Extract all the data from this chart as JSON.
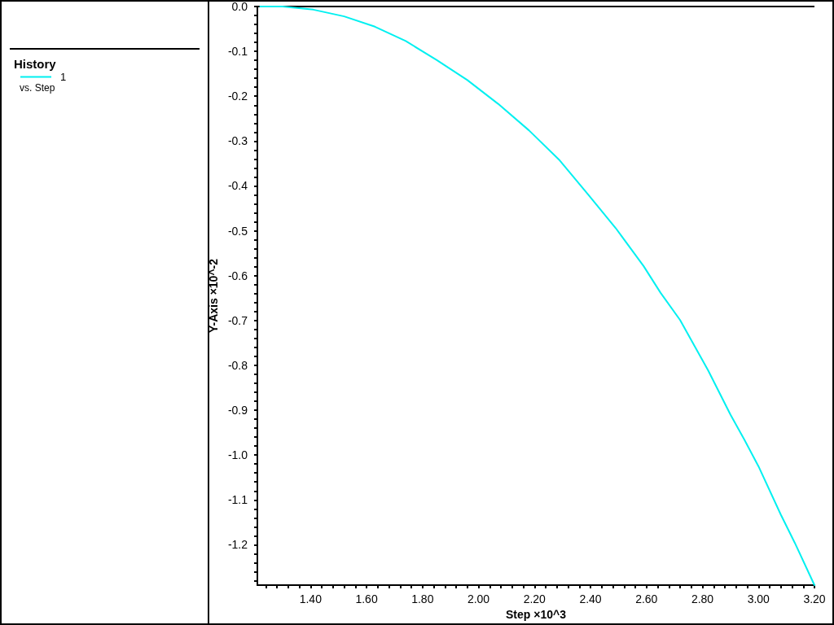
{
  "chart_data": {
    "type": "line",
    "x": [
      1.22,
      1.3,
      1.41,
      1.52,
      1.63,
      1.74,
      1.85,
      1.96,
      2.07,
      2.18,
      2.29,
      2.39,
      2.49,
      2.59,
      2.65,
      2.72,
      2.82,
      2.9,
      2.95,
      3.0,
      3.08,
      3.13,
      3.2
    ],
    "series": [
      {
        "name": "1",
        "color": "#00f0f0",
        "values": [
          0,
          0,
          -0.007,
          -0.022,
          -0.045,
          -0.077,
          -0.119,
          -0.164,
          -0.217,
          -0.276,
          -0.343,
          -0.418,
          -0.494,
          -0.579,
          -0.638,
          -0.699,
          -0.811,
          -0.91,
          -0.966,
          -1.025,
          -1.133,
          -1.196,
          -1.29
        ]
      }
    ],
    "xlabel": "Step ×10^3",
    "ylabel": "Y-Axis ×10^-2",
    "legend": "left",
    "legend_title": "History",
    "annotations": [
      "vs. Step"
    ],
    "marker": "none",
    "line_style": "solid",
    "ref_lines": [
      {
        "axis": "y",
        "value": 0,
        "color": "#000000"
      }
    ],
    "xlim": [
      1.21,
      3.2
    ],
    "ylim": [
      -1.29,
      0
    ],
    "xticks": [
      {
        "value": 1.24,
        "label": null
      },
      {
        "value": 1.28,
        "label": null
      },
      {
        "value": 1.32,
        "label": null
      },
      {
        "value": 1.36,
        "label": null
      },
      {
        "value": 1.4,
        "label": "1.40"
      },
      {
        "value": 1.44,
        "label": null
      },
      {
        "value": 1.48,
        "label": null
      },
      {
        "value": 1.52,
        "label": null
      },
      {
        "value": 1.56,
        "label": null
      },
      {
        "value": 1.6,
        "label": "1.60"
      },
      {
        "value": 1.64,
        "label": null
      },
      {
        "value": 1.68,
        "label": null
      },
      {
        "value": 1.72,
        "label": null
      },
      {
        "value": 1.76,
        "label": null
      },
      {
        "value": 1.8,
        "label": "1.80"
      },
      {
        "value": 1.84,
        "label": null
      },
      {
        "value": 1.88,
        "label": null
      },
      {
        "value": 1.92,
        "label": null
      },
      {
        "value": 1.96,
        "label": null
      },
      {
        "value": 2.0,
        "label": "2.00"
      },
      {
        "value": 2.04,
        "label": null
      },
      {
        "value": 2.08,
        "label": null
      },
      {
        "value": 2.12,
        "label": null
      },
      {
        "value": 2.16,
        "label": null
      },
      {
        "value": 2.2,
        "label": "2.20"
      },
      {
        "value": 2.24,
        "label": null
      },
      {
        "value": 2.28,
        "label": null
      },
      {
        "value": 2.32,
        "label": null
      },
      {
        "value": 2.36,
        "label": null
      },
      {
        "value": 2.4,
        "label": "2.40"
      },
      {
        "value": 2.44,
        "label": null
      },
      {
        "value": 2.48,
        "label": null
      },
      {
        "value": 2.52,
        "label": null
      },
      {
        "value": 2.56,
        "label": null
      },
      {
        "value": 2.6,
        "label": "2.60"
      },
      {
        "value": 2.64,
        "label": null
      },
      {
        "value": 2.68,
        "label": null
      },
      {
        "value": 2.72,
        "label": null
      },
      {
        "value": 2.76,
        "label": null
      },
      {
        "value": 2.8,
        "label": "2.80"
      },
      {
        "value": 2.84,
        "label": null
      },
      {
        "value": 2.88,
        "label": null
      },
      {
        "value": 2.92,
        "label": null
      },
      {
        "value": 2.96,
        "label": null
      },
      {
        "value": 3.0,
        "label": "3.00"
      },
      {
        "value": 3.04,
        "label": null
      },
      {
        "value": 3.08,
        "label": null
      },
      {
        "value": 3.12,
        "label": null
      },
      {
        "value": 3.16,
        "label": null
      },
      {
        "value": 3.2,
        "label": "3.20"
      }
    ],
    "yticks": [
      {
        "value": 0,
        "label": "0.0"
      },
      {
        "value": -0.02,
        "label": null
      },
      {
        "value": -0.04,
        "label": null
      },
      {
        "value": -0.06,
        "label": null
      },
      {
        "value": -0.08,
        "label": null
      },
      -0.1,
      {
        "value": -0.12,
        "label": null
      },
      {
        "value": -0.14,
        "label": null
      },
      {
        "value": -0.16,
        "label": null
      },
      {
        "value": -0.18,
        "label": null
      },
      -0.2,
      {
        "value": -0.22,
        "label": null
      },
      {
        "value": -0.24,
        "label": null
      },
      {
        "value": -0.26,
        "label": null
      },
      {
        "value": -0.28,
        "label": null
      },
      -0.3,
      {
        "value": -0.32,
        "label": null
      },
      {
        "value": -0.34,
        "label": null
      },
      {
        "value": -0.36,
        "label": null
      },
      {
        "value": -0.38,
        "label": null
      },
      -0.4,
      {
        "value": -0.42,
        "label": null
      },
      {
        "value": -0.44,
        "label": null
      },
      {
        "value": -0.46,
        "label": null
      },
      {
        "value": -0.48,
        "label": null
      },
      -0.5,
      {
        "value": -0.52,
        "label": null
      },
      {
        "value": -0.54,
        "label": null
      },
      {
        "value": -0.56,
        "label": null
      },
      {
        "value": -0.58,
        "label": null
      },
      -0.6,
      {
        "value": -0.62,
        "label": null
      },
      {
        "value": -0.64,
        "label": null
      },
      {
        "value": -0.66,
        "label": null
      },
      {
        "value": -0.68,
        "label": null
      },
      -0.7,
      {
        "value": -0.72,
        "label": null
      },
      {
        "value": -0.74,
        "label": null
      },
      {
        "value": -0.76,
        "label": null
      },
      {
        "value": -0.78,
        "label": null
      },
      -0.8,
      {
        "value": -0.82,
        "label": null
      },
      {
        "value": -0.84,
        "label": null
      },
      {
        "value": -0.86,
        "label": null
      },
      {
        "value": -0.88,
        "label": null
      },
      -0.9,
      {
        "value": -0.92,
        "label": null
      },
      {
        "value": -0.94,
        "label": null
      },
      {
        "value": -0.96,
        "label": null
      },
      {
        "value": -0.98,
        "label": null
      },
      {
        "value": -1,
        "label": "-1.0"
      },
      {
        "value": -1.02,
        "label": null
      },
      {
        "value": -1.04,
        "label": null
      },
      {
        "value": -1.06,
        "label": null
      },
      {
        "value": -1.08,
        "label": null
      },
      -1.1,
      {
        "value": -1.12,
        "label": null
      },
      {
        "value": -1.14,
        "label": null
      },
      {
        "value": -1.16,
        "label": null
      },
      {
        "value": -1.18,
        "label": null
      },
      -1.2,
      {
        "value": -1.22,
        "label": null
      },
      {
        "value": -1.24,
        "label": null
      },
      {
        "value": -1.26,
        "label": null
      },
      {
        "value": -1.28,
        "label": null
      }
    ]
  }
}
